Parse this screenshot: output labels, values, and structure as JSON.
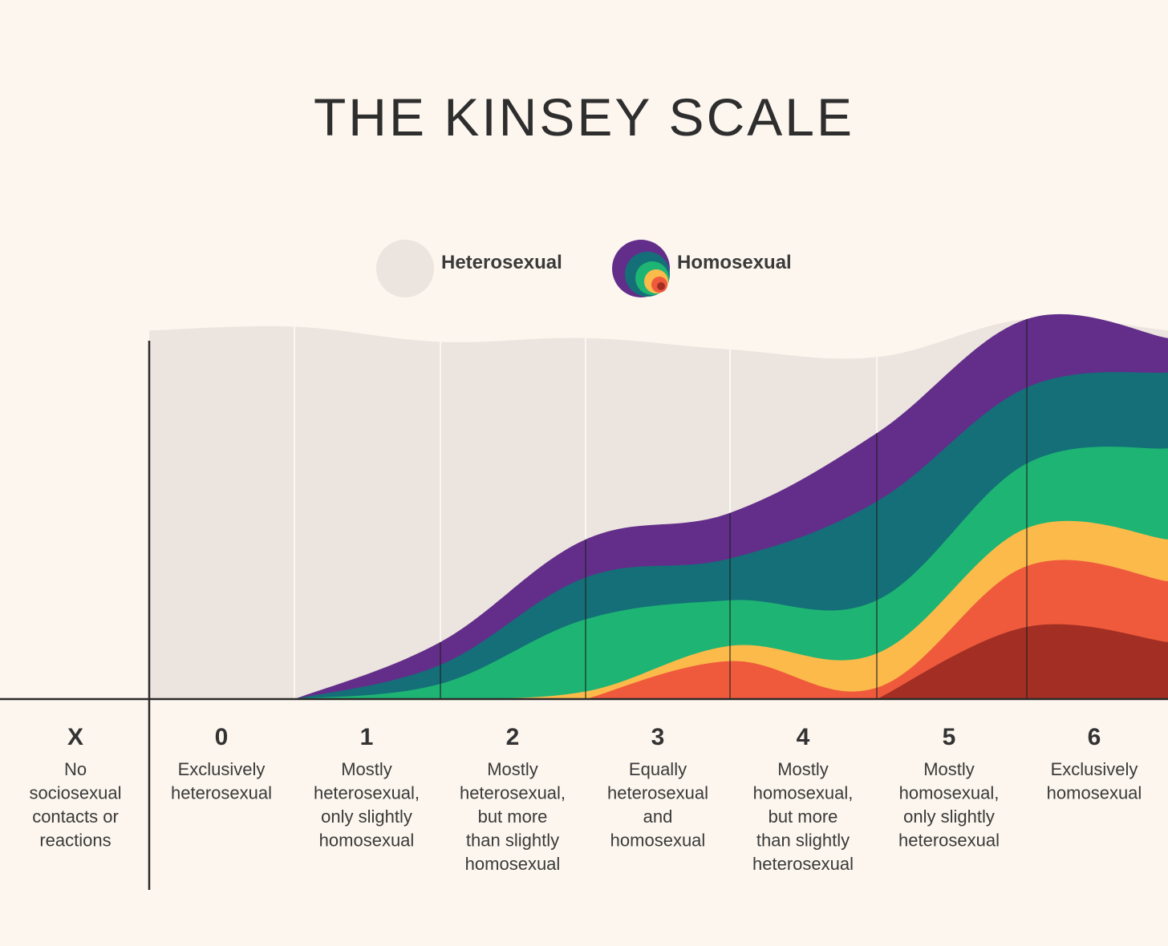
{
  "title": "THE KINSEY SCALE",
  "legend": {
    "heterosexual": "Heterosexual",
    "homosexual": "Homosexual"
  },
  "colors": {
    "background": "#fcf6ee",
    "heterosexual": "#ece4de",
    "purple": "#622e8a",
    "teal": "#146f78",
    "green": "#1eb473",
    "yellow": "#fbba4a",
    "orange": "#ef5a3c",
    "red": "#a32f24",
    "axis": "#2b2b2b"
  },
  "icons": {
    "heterosexual_swatch": "circle-icon",
    "homosexual_swatch": "concentric-circles-icon"
  },
  "chart_data": {
    "type": "area",
    "title": "THE KINSEY SCALE",
    "categories": [
      {
        "label": "X",
        "description": [
          "No",
          "sociosexual",
          "contacts or",
          "reactions"
        ]
      },
      {
        "label": "0",
        "description": [
          "Exclusively",
          "heterosexual"
        ]
      },
      {
        "label": "1",
        "description": [
          "Mostly",
          "heterosexual,",
          "only slightly",
          "homosexual"
        ]
      },
      {
        "label": "2",
        "description": [
          "Mostly",
          "heterosexual,",
          "but more",
          "than slightly",
          "homosexual"
        ]
      },
      {
        "label": "3",
        "description": [
          "Equally",
          "heterosexual",
          "and",
          "homosexual"
        ]
      },
      {
        "label": "4",
        "description": [
          "Mostly",
          "homosexual,",
          "but more",
          "than slightly",
          "heterosexual"
        ]
      },
      {
        "label": "5",
        "description": [
          "Mostly",
          "homosexual,",
          "only slightly",
          "heterosexual"
        ]
      },
      {
        "label": "6",
        "description": [
          "Exclusively",
          "homosexual"
        ]
      }
    ],
    "scale_points": [
      0,
      1,
      2,
      3,
      4,
      5,
      6
    ],
    "series": [
      {
        "name": "Heterosexual",
        "color": "#ece4de",
        "values": [
          0.97,
          0.98,
          0.94,
          0.95,
          0.92,
          0.9,
          1.0,
          0.97
        ]
      },
      {
        "color": "#622e8a",
        "values": [
          0.0,
          0.0,
          0.15,
          0.42,
          0.49,
          0.7,
          1.0,
          0.95
        ]
      },
      {
        "color": "#146f78",
        "values": [
          0.0,
          0.0,
          0.09,
          0.32,
          0.37,
          0.52,
          0.82,
          0.86
        ]
      },
      {
        "color": "#1eb473",
        "values": [
          0.0,
          0.0,
          0.04,
          0.21,
          0.26,
          0.26,
          0.62,
          0.66
        ]
      },
      {
        "color": "#fbba4a",
        "values": [
          0.0,
          0.0,
          0.0,
          0.02,
          0.14,
          0.12,
          0.45,
          0.42
        ]
      },
      {
        "color": "#ef5a3c",
        "values": [
          0.0,
          0.0,
          0.0,
          0.0,
          0.1,
          0.03,
          0.35,
          0.31
        ]
      },
      {
        "color": "#a32f24",
        "values": [
          0.0,
          0.0,
          0.0,
          0.0,
          0.0,
          0.0,
          0.19,
          0.15
        ]
      }
    ],
    "legend_position": "top-center",
    "grid": true
  }
}
